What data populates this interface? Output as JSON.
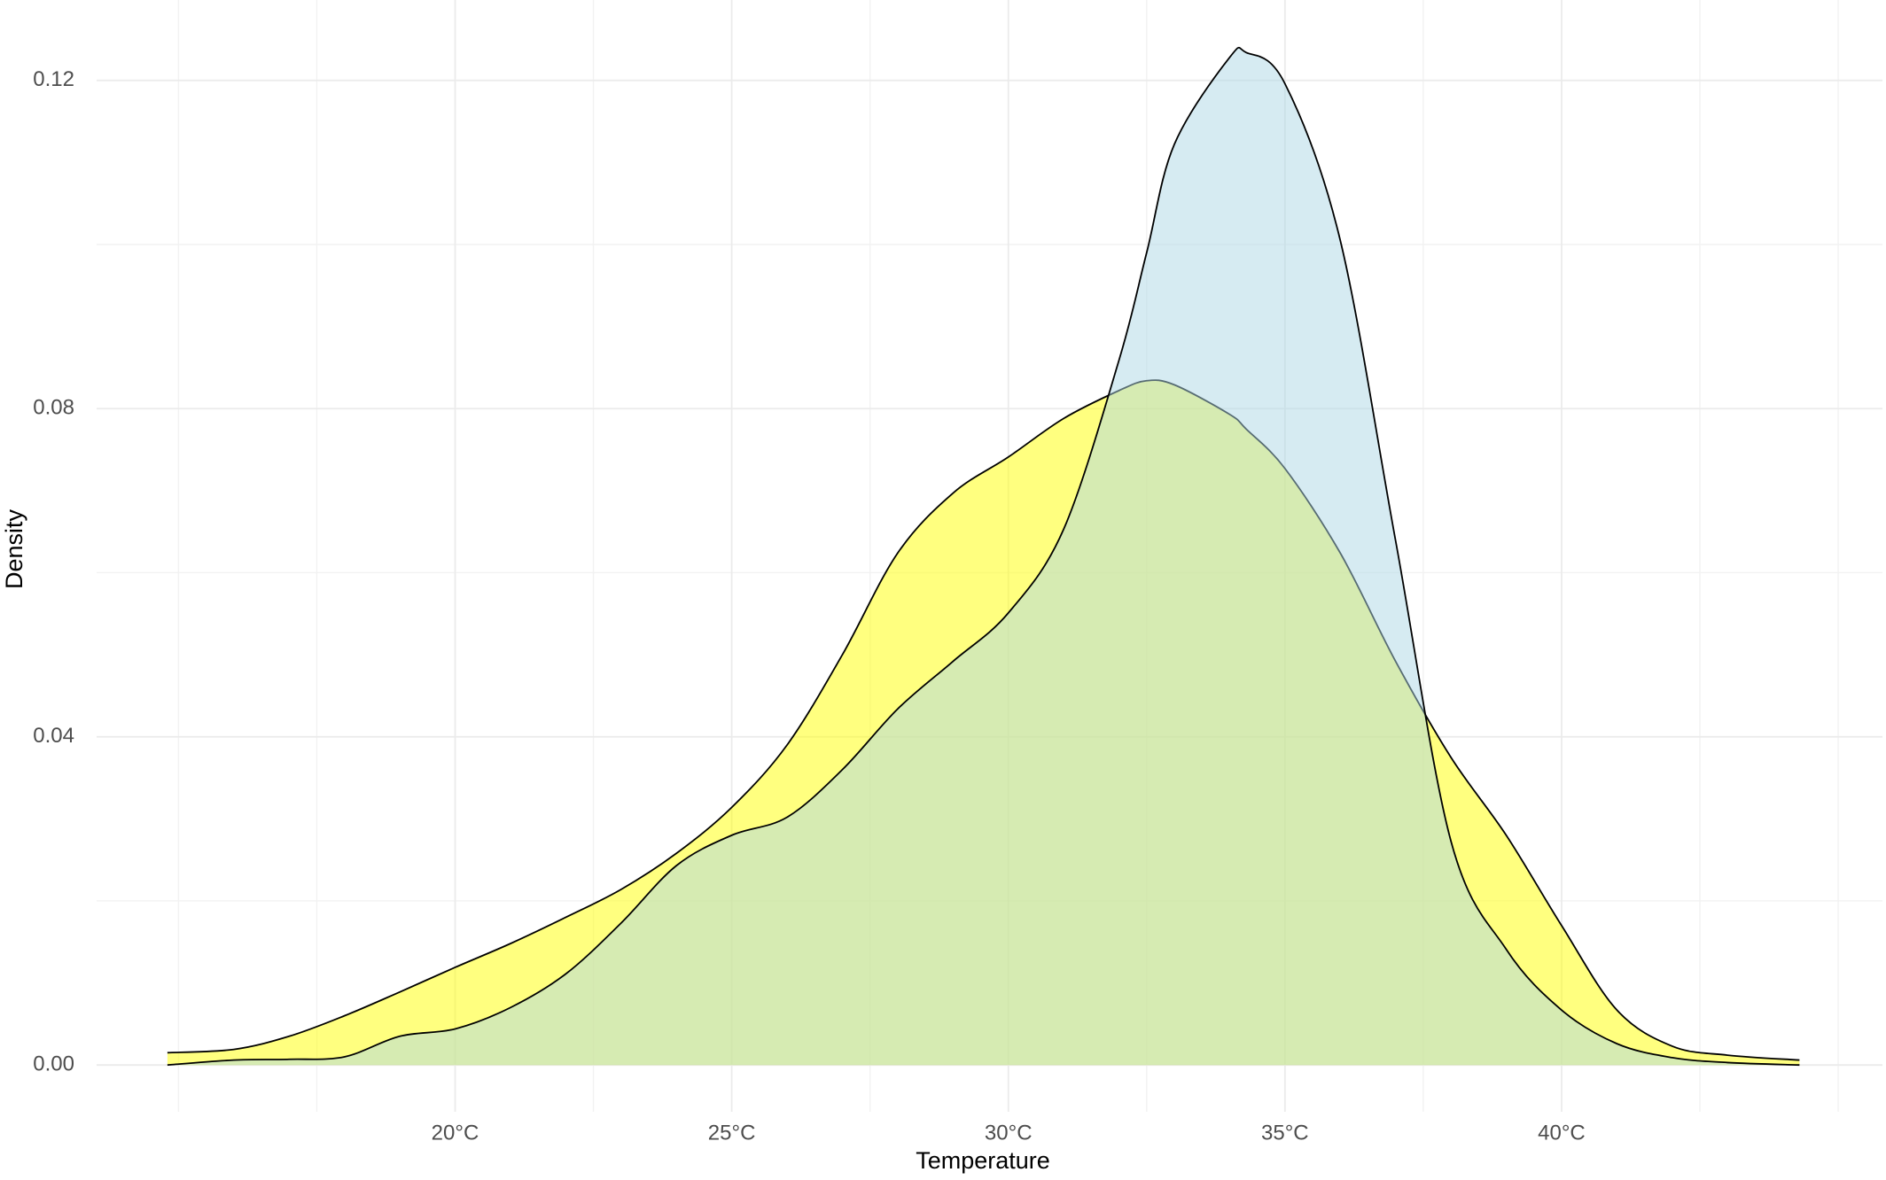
{
  "chart_data": {
    "type": "area",
    "x_label": "Temperature",
    "y_label": "Density",
    "x": [
      14.8,
      16,
      17,
      18,
      19,
      20,
      21,
      22,
      23,
      24,
      25,
      26,
      27,
      28,
      29,
      30,
      31,
      32,
      32.5,
      33,
      34,
      34.3,
      35,
      36,
      37,
      38,
      39,
      40,
      41,
      42,
      43,
      44.3
    ],
    "series": [
      {
        "color": "yellow",
        "opacity": 0.5,
        "values": [
          0.0015,
          0.0019,
          0.0035,
          0.006,
          0.0089,
          0.0119,
          0.0148,
          0.018,
          0.0214,
          0.0258,
          0.0314,
          0.039,
          0.05,
          0.0624,
          0.0697,
          0.0741,
          0.0788,
          0.0822,
          0.0834,
          0.0829,
          0.0793,
          0.0775,
          0.0727,
          0.0624,
          0.0492,
          0.0375,
          0.028,
          0.017,
          0.0067,
          0.0023,
          0.0012,
          0.0006
        ]
      },
      {
        "color": "lightblue",
        "opacity": 0.5,
        "values": [
          0.0,
          0.0006,
          0.0007,
          0.001,
          0.0035,
          0.0044,
          0.007,
          0.0111,
          0.0173,
          0.0243,
          0.028,
          0.0302,
          0.036,
          0.0434,
          0.0492,
          0.0551,
          0.0653,
          0.0859,
          0.099,
          0.1122,
          0.1228,
          0.1234,
          0.1196,
          0.1005,
          0.0639,
          0.0273,
          0.0141,
          0.0067,
          0.0026,
          0.0009,
          0.0003,
          0.0
        ]
      }
    ],
    "xlim": [
      13.52,
      45.8
    ],
    "xticks": [
      {
        "value": 20,
        "label": "20°C"
      },
      {
        "value": 25,
        "label": "25°C"
      },
      {
        "value": 30,
        "label": "30°C"
      },
      {
        "value": 35,
        "label": "35°C"
      },
      {
        "value": 40,
        "label": "40°C"
      }
    ],
    "ylim": [
      -0.0057,
      0.1298
    ],
    "yticks": [
      {
        "value": 0,
        "label": "0.00"
      },
      0.04,
      0.08,
      0.12
    ],
    "grid": true
  }
}
